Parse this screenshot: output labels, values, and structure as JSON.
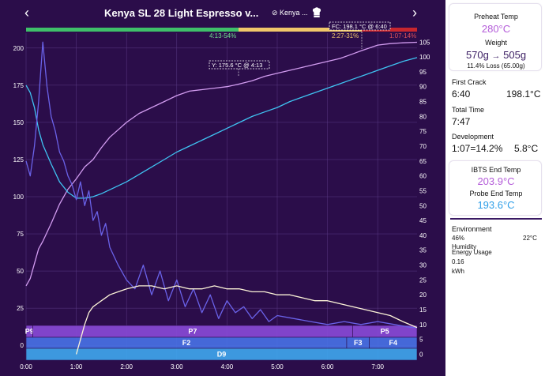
{
  "header": {
    "title": "Kenya SL 28 Light Espresso v...",
    "bean": "Kenya ..."
  },
  "phase_labels": {
    "drying": "4:13-54%",
    "maillard": "2:27-31%",
    "development": "1:07-14%"
  },
  "annotations": {
    "first_crack": "FC: 198.1 °C @ 6:40",
    "yellowing": "Y: 175.6 °C @ 4:13"
  },
  "control_bands": {
    "power": [
      {
        "label": "P9",
        "start": "0:00",
        "end": "0:08"
      },
      {
        "label": "P7",
        "start": "0:08",
        "end": "6:30"
      },
      {
        "label": "P5",
        "start": "6:30",
        "end": "7:47"
      }
    ],
    "fan": [
      {
        "label": "F2",
        "start": "0:00",
        "end": "6:23"
      },
      {
        "label": "F3",
        "start": "6:23",
        "end": "6:50"
      },
      {
        "label": "F4",
        "start": "6:50",
        "end": "7:47"
      }
    ],
    "drum": [
      {
        "label": "D9",
        "start": "0:00",
        "end": "7:47"
      }
    ]
  },
  "chart_data": {
    "type": "line",
    "x_unit": "time (m:ss)",
    "x_ticks": [
      "0:00",
      "1:00",
      "2:00",
      "3:00",
      "4:00",
      "5:00",
      "6:00",
      "7:00"
    ],
    "xlim": [
      "0:00",
      "7:47"
    ],
    "y_left_ticks": [
      0,
      25,
      50,
      75,
      100,
      125,
      150,
      175,
      200
    ],
    "y_left_range": [
      -10,
      210
    ],
    "y_right_ticks": [
      0,
      5,
      10,
      15,
      20,
      25,
      30,
      35,
      40,
      45,
      50,
      55,
      60,
      65,
      70,
      75,
      80,
      85,
      90,
      95,
      100,
      105
    ],
    "y_right_range": [
      -2,
      108
    ],
    "grid": true,
    "series": [
      {
        "color": "#d29cf0",
        "axis": "left",
        "x": [
          "0:00",
          "0:05",
          "0:10",
          "0:15",
          "0:20",
          "0:30",
          "0:40",
          "0:50",
          "1:00",
          "1:10",
          "1:20",
          "1:30",
          "1:40",
          "1:50",
          "2:00",
          "2:15",
          "2:30",
          "2:45",
          "3:00",
          "3:15",
          "3:30",
          "3:45",
          "4:00",
          "4:13",
          "4:30",
          "4:45",
          "5:00",
          "5:15",
          "5:30",
          "5:45",
          "6:00",
          "6:15",
          "6:30",
          "6:40",
          "6:50",
          "7:00",
          "7:15",
          "7:30",
          "7:47"
        ],
        "y": [
          40,
          45,
          55,
          65,
          70,
          82,
          95,
          105,
          112,
          120,
          125,
          133,
          140,
          145,
          150,
          156,
          160,
          164,
          168,
          171,
          172,
          173,
          174,
          175.6,
          178,
          181,
          183,
          185,
          187,
          189,
          191,
          193,
          196,
          198.1,
          200,
          202,
          203,
          203.5,
          203.9
        ]
      },
      {
        "color": "#3fc3f2",
        "axis": "left",
        "x": [
          "0:00",
          "0:05",
          "0:10",
          "0:15",
          "0:20",
          "0:30",
          "0:40",
          "0:50",
          "1:00",
          "1:10",
          "1:20",
          "1:30",
          "1:45",
          "2:00",
          "2:15",
          "2:30",
          "2:45",
          "3:00",
          "3:15",
          "3:30",
          "3:45",
          "4:00",
          "4:15",
          "4:30",
          "4:45",
          "5:00",
          "5:15",
          "5:30",
          "5:45",
          "6:00",
          "6:15",
          "6:30",
          "6:45",
          "7:00",
          "7:15",
          "7:30",
          "7:47"
        ],
        "y": [
          175,
          170,
          160,
          145,
          135,
          122,
          110,
          103,
          99,
          99,
          100,
          102,
          106,
          110,
          115,
          120,
          125,
          130,
          134,
          138,
          142,
          146,
          150,
          154,
          157,
          160,
          164,
          167,
          170,
          173,
          176,
          179,
          182,
          185,
          188,
          191,
          193.6
        ]
      },
      {
        "color": "#6a62e8",
        "axis": "right",
        "x": [
          "0:00",
          "0:05",
          "0:10",
          "0:15",
          "0:20",
          "0:25",
          "0:30",
          "0:35",
          "0:40",
          "0:45",
          "0:50",
          "0:55",
          "1:00",
          "1:05",
          "1:10",
          "1:15",
          "1:20",
          "1:25",
          "1:30",
          "1:35",
          "1:40",
          "1:50",
          "2:00",
          "2:10",
          "2:20",
          "2:30",
          "2:40",
          "2:50",
          "3:00",
          "3:10",
          "3:20",
          "3:30",
          "3:40",
          "3:50",
          "4:00",
          "4:10",
          "4:20",
          "4:30",
          "4:40",
          "4:50",
          "5:00",
          "5:20",
          "5:40",
          "6:00",
          "6:20",
          "6:40",
          "7:00",
          "7:20",
          "7:40",
          "7:47"
        ],
        "y": [
          65,
          60,
          70,
          85,
          105,
          90,
          80,
          75,
          68,
          65,
          60,
          57,
          52,
          58,
          50,
          55,
          45,
          48,
          40,
          44,
          36,
          30,
          25,
          22,
          30,
          20,
          28,
          18,
          25,
          16,
          22,
          14,
          20,
          12,
          18,
          14,
          16,
          12,
          15,
          11,
          13,
          12,
          11,
          10,
          11,
          10,
          11,
          10,
          9,
          9
        ]
      },
      {
        "color": "#fdf4d8",
        "axis": "right",
        "x": [
          "1:00",
          "1:05",
          "1:10",
          "1:15",
          "1:20",
          "1:30",
          "1:40",
          "1:50",
          "2:00",
          "2:15",
          "2:30",
          "2:45",
          "3:00",
          "3:15",
          "3:30",
          "3:45",
          "4:00",
          "4:15",
          "4:30",
          "4:45",
          "5:00",
          "5:15",
          "5:30",
          "5:45",
          "6:00",
          "6:15",
          "6:30",
          "6:45",
          "7:00",
          "7:15",
          "7:30",
          "7:47"
        ],
        "y": [
          0,
          5,
          10,
          14,
          16,
          18,
          20,
          21,
          22,
          23,
          23,
          22,
          23,
          22,
          22,
          23,
          22,
          22,
          21,
          21,
          20,
          20,
          19,
          18,
          18,
          17,
          16,
          15,
          14,
          13,
          11,
          9
        ]
      }
    ]
  },
  "sidebar": {
    "preheat_label": "Preheat Temp",
    "preheat_value": "280°C",
    "weight_label": "Weight",
    "weight_in": "570g",
    "weight_arrow": "→",
    "weight_out": "505g",
    "weight_loss": "11.4% Loss (65.00g)",
    "first_crack_label": "First Crack",
    "first_crack_time": "6:40",
    "first_crack_temp": "198.1°C",
    "total_time_label": "Total Time",
    "total_time": "7:47",
    "development_label": "Development",
    "development_value": "1:07=14.2%",
    "development_delta": "5.8°C",
    "ibts_label": "IBTS End Temp",
    "ibts_value": "203.9°C",
    "probe_label": "Probe End Temp",
    "probe_value": "193.6°C",
    "env_label": "Environment",
    "env_humidity": "46%",
    "env_humidity_label": "Humidity",
    "env_temp": "22°C",
    "energy_label": "Energy Usage",
    "energy_value": "0.16",
    "energy_unit": "kWh"
  },
  "colors": {
    "background": "#2b0d4a",
    "drying_phase": "#3fbf6a",
    "maillard_phase": "#f1c76a",
    "development_phase": "#c8262e",
    "ibts_line": "#d29cf0",
    "probe_line": "#3fc3f2",
    "ror_line": "#6a62e8",
    "power_line": "#fdf4d8",
    "power_band": "#8a4ad8",
    "fan_band": "#4872e8",
    "drum_band": "#3fa8f0"
  }
}
